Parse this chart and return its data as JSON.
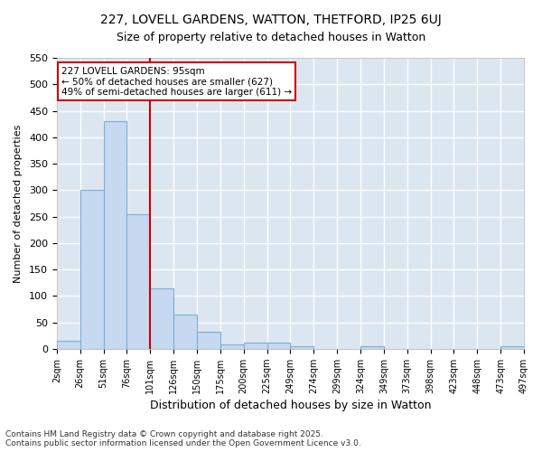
{
  "title_line1": "227, LOVELL GARDENS, WATTON, THETFORD, IP25 6UJ",
  "title_line2": "Size of property relative to detached houses in Watton",
  "xlabel": "Distribution of detached houses by size in Watton",
  "ylabel": "Number of detached properties",
  "tick_labels": [
    "2sqm",
    "26sqm",
    "51sqm",
    "76sqm",
    "101sqm",
    "126sqm",
    "150sqm",
    "175sqm",
    "200sqm",
    "225sqm",
    "249sqm",
    "274sqm",
    "299sqm",
    "324sqm",
    "349sqm",
    "373sqm",
    "398sqm",
    "423sqm",
    "448sqm",
    "473sqm",
    "497sqm"
  ],
  "bar_values": [
    15,
    300,
    430,
    255,
    115,
    65,
    33,
    9,
    11,
    11,
    5,
    0,
    0,
    4,
    0,
    0,
    0,
    0,
    0,
    5
  ],
  "bar_color": "#c6d9f1",
  "bar_edge_color": "#7bafd4",
  "vertical_line_color": "#cc0000",
  "annotation_text": "227 LOVELL GARDENS: 95sqm\n← 50% of detached houses are smaller (627)\n49% of semi-detached houses are larger (611) →",
  "annotation_box_color": "#cc0000",
  "ylim": [
    0,
    550
  ],
  "yticks": [
    0,
    50,
    100,
    150,
    200,
    250,
    300,
    350,
    400,
    450,
    500,
    550
  ],
  "background_color": "#dce6f1",
  "grid_color": "#ffffff",
  "footer_line1": "Contains HM Land Registry data © Crown copyright and database right 2025.",
  "footer_line2": "Contains public sector information licensed under the Open Government Licence v3.0."
}
